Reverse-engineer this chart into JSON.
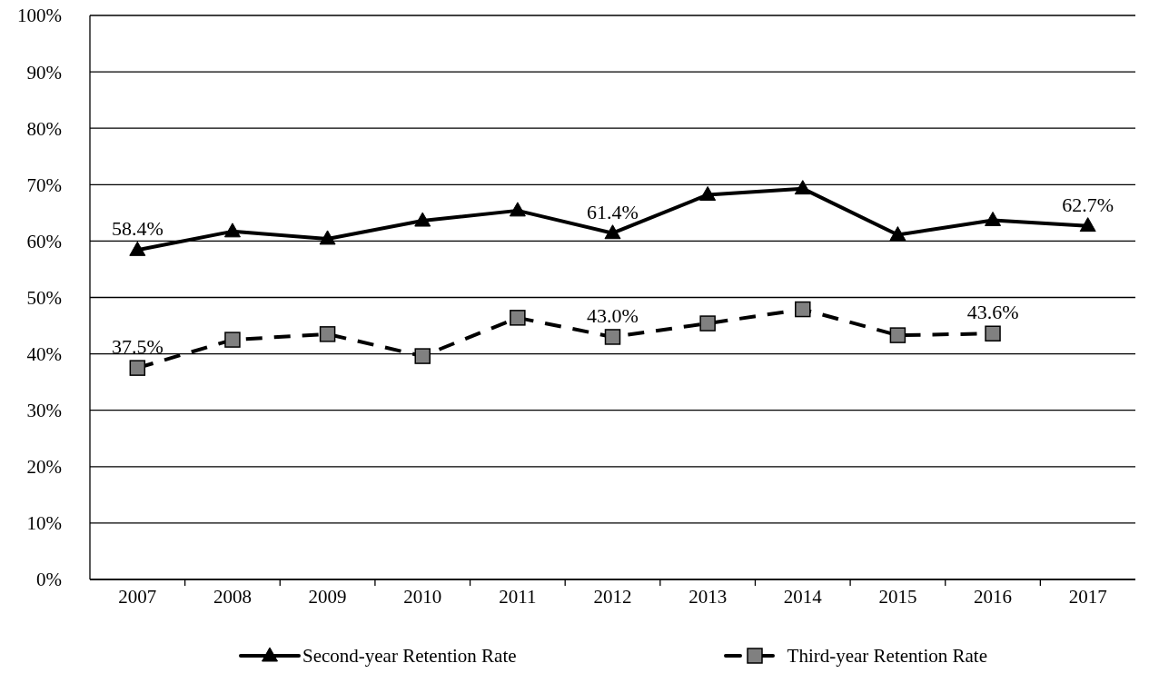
{
  "chart_data": {
    "type": "line",
    "categories": [
      "2007",
      "2008",
      "2009",
      "2010",
      "2011",
      "2012",
      "2013",
      "2014",
      "2015",
      "2016",
      "2017"
    ],
    "series": [
      {
        "name": "Second-year Retention Rate",
        "color": "#000000",
        "marker": "triangle",
        "line_style": "solid",
        "values": [
          58.4,
          61.7,
          60.4,
          63.6,
          65.4,
          61.4,
          68.2,
          69.3,
          61.1,
          63.7,
          62.7
        ],
        "value_labels": [
          "58.4%",
          null,
          null,
          null,
          null,
          "61.4%",
          null,
          null,
          null,
          null,
          "62.7%"
        ]
      },
      {
        "name": "Third-year Retention Rate",
        "color": "#000000",
        "marker": "square",
        "line_style": "dashed",
        "values": [
          37.5,
          42.5,
          43.5,
          39.6,
          46.4,
          43.0,
          45.4,
          47.9,
          43.3,
          43.6,
          null
        ],
        "value_labels": [
          "37.5%",
          null,
          null,
          null,
          null,
          "43.0%",
          null,
          null,
          null,
          "43.6%",
          null
        ]
      }
    ],
    "ylim": [
      0,
      100
    ],
    "yticks": [
      {
        "value": 0,
        "label": "0%"
      },
      {
        "value": 10,
        "label": "10%"
      },
      {
        "value": 20,
        "label": "20%"
      },
      {
        "value": 30,
        "label": "30%"
      },
      {
        "value": 40,
        "label": "40%"
      },
      {
        "value": 50,
        "label": "50%"
      },
      {
        "value": 60,
        "label": "60%"
      },
      {
        "value": 70,
        "label": "70%"
      },
      {
        "value": 80,
        "label": "80%"
      },
      {
        "value": 90,
        "label": "90%"
      },
      {
        "value": 100,
        "label": "100%"
      }
    ],
    "grid": "y",
    "legend": "bottom"
  }
}
